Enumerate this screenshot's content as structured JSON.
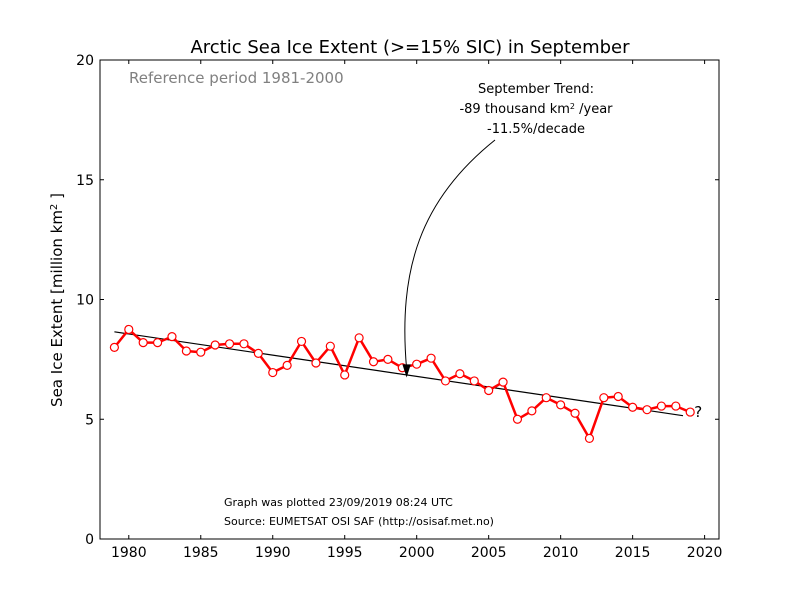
{
  "chart_data": {
    "type": "line",
    "title": "Arctic Sea Ice Extent (>=15% SIC) in September",
    "ylabel_main": "Sea Ice Extent [million km",
    "ylabel_sup": "2",
    "ylabel_end": " ]",
    "reference_text": "Reference period 1981-2000",
    "annotation": {
      "line1": "September Trend:",
      "line2_pre": "-89 thousand km",
      "line2_sup": "2",
      "line2_post": " /year",
      "line3": "-11.5%/decade",
      "arrow_target_year": 1999.3
    },
    "footer": {
      "plotted": "Graph was plotted 23/09/2019 08:24 UTC",
      "source": "Source: EUMETSAT OSI SAF (http://osisaf.met.no)"
    },
    "question_mark": "?",
    "xlim": [
      1978,
      2021
    ],
    "ylim": [
      0,
      20
    ],
    "xticks": [
      "1980",
      "1985",
      "1990",
      "1995",
      "2000",
      "2005",
      "2010",
      "2015",
      "2020"
    ],
    "yticks": [
      "0",
      "5",
      "10",
      "15",
      "20"
    ],
    "series": [
      {
        "x": [
          1979,
          1980,
          1981,
          1982,
          1983,
          1984,
          1985,
          1986,
          1987,
          1988,
          1989,
          1990,
          1991,
          1992,
          1993,
          1994,
          1995,
          1996,
          1997,
          1998,
          1999,
          2000,
          2001,
          2002,
          2003,
          2004,
          2005,
          2006,
          2007,
          2008,
          2009,
          2010,
          2011,
          2012,
          2013,
          2014,
          2015,
          2016,
          2017,
          2018,
          2019
        ],
        "values": [
          8.0,
          8.75,
          8.2,
          8.2,
          8.45,
          7.85,
          7.8,
          8.1,
          8.15,
          8.15,
          7.75,
          6.95,
          7.25,
          8.25,
          7.35,
          8.05,
          6.85,
          8.4,
          7.4,
          7.5,
          7.15,
          7.3,
          7.55,
          6.6,
          6.9,
          6.6,
          6.2,
          6.55,
          5.0,
          5.35,
          5.9,
          5.6,
          5.25,
          4.2,
          5.9,
          5.95,
          5.5,
          5.4,
          5.55,
          5.55,
          5.3
        ],
        "color": "#ff0000"
      }
    ],
    "trend": {
      "x": [
        1979,
        2018.5
      ],
      "values": [
        8.65,
        5.15
      ],
      "color": "#000000"
    }
  }
}
